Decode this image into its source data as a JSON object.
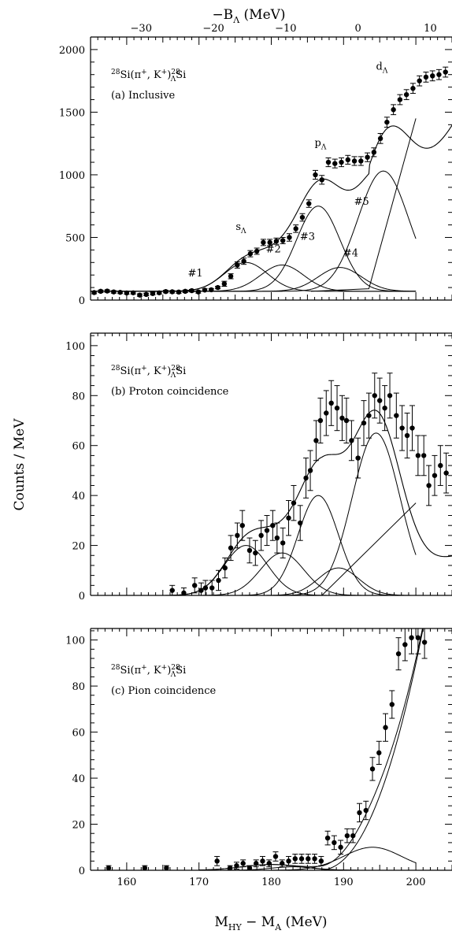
{
  "figure": {
    "top_axis_label": "−B",
    "top_axis_label_sub": "Λ",
    "top_axis_label_unit": " (MeV)",
    "y_axis_label": "Counts / MeV",
    "x_axis_label_main": "M",
    "x_axis_label_sub1": "HY",
    "x_axis_label_mid": " − M",
    "x_axis_label_sub2": "A",
    "x_axis_label_unit": " (MeV)"
  },
  "chart_data": [
    {
      "type": "scatter",
      "panel": "a",
      "reaction": {
        "pre": "28",
        "target": "Si(π",
        "sup1": "+",
        "mid": ", K",
        "sup2": "+",
        "close": ")",
        "pre2": "28",
        "sub": "Λ",
        "product": "Si"
      },
      "subtitle": "(a) Inclusive",
      "xlim": [
        155,
        205
      ],
      "ylim": [
        0,
        2100
      ],
      "yticks": [
        0,
        500,
        1000,
        1500,
        2000
      ],
      "xticks_top": [
        -30,
        -20,
        -10,
        0,
        10
      ],
      "top_axis_offset": 192,
      "xticks_bottom": [],
      "annotations": [
        {
          "text": "#1",
          "x": 169.5,
          "y": 190
        },
        {
          "text": "s",
          "sub": "Λ",
          "x": 175.8,
          "y": 560
        },
        {
          "text": "#2",
          "x": 180.3,
          "y": 380
        },
        {
          "text": "#3",
          "x": 185.0,
          "y": 480
        },
        {
          "text": "#4",
          "x": 191.0,
          "y": 350
        },
        {
          "text": "p",
          "sub": "Λ",
          "x": 186.8,
          "y": 1230
        },
        {
          "text": "#5",
          "x": 192.5,
          "y": 760
        },
        {
          "text": "d",
          "sub": "Λ",
          "x": 195.3,
          "y": 1840
        }
      ],
      "series": [
        {
          "x": [
            155.5,
            156.4,
            157.3,
            158.2,
            159.1,
            160,
            160.9,
            161.8,
            162.7,
            163.6,
            164.5,
            165.4,
            166.3,
            167.2,
            168.1,
            169,
            169.9,
            170.8,
            171.7,
            172.6,
            173.5,
            174.4,
            175.3,
            176.2,
            177.1,
            178,
            178.9,
            179.8,
            180.7,
            181.6,
            182.5,
            183.4,
            184.3,
            185.2,
            186.1,
            187,
            187.9,
            188.8,
            189.7,
            190.6,
            191.5,
            192.4,
            193.3,
            194.2,
            195.1,
            196,
            196.9,
            197.8,
            198.7,
            199.6,
            200.5,
            201.4,
            202.3,
            203.2,
            204.1
          ],
          "y": [
            60,
            70,
            72,
            65,
            62,
            57,
            58,
            40,
            45,
            52,
            58,
            68,
            66,
            64,
            70,
            75,
            65,
            80,
            82,
            100,
            130,
            190,
            280,
            310,
            370,
            390,
            460,
            460,
            470,
            475,
            500,
            570,
            660,
            770,
            1000,
            960,
            1100,
            1090,
            1100,
            1120,
            1110,
            1110,
            1140,
            1180,
            1290,
            1420,
            1520,
            1600,
            1640,
            1690,
            1750,
            1780,
            1790,
            1800,
            1820
          ],
          "err": [
            10,
            10,
            10,
            10,
            10,
            10,
            10,
            10,
            10,
            10,
            10,
            10,
            10,
            10,
            10,
            10,
            10,
            10,
            10,
            10,
            20,
            20,
            25,
            25,
            25,
            25,
            25,
            25,
            25,
            25,
            30,
            30,
            30,
            30,
            35,
            35,
            35,
            35,
            35,
            35,
            35,
            35,
            35,
            35,
            40,
            40,
            40,
            40,
            40,
            40,
            40,
            40,
            40,
            40,
            40
          ]
        }
      ],
      "fit": {
        "baseline": 70,
        "total_end": 200
      },
      "components": [
        {
          "name": "#1",
          "center": 176.5,
          "sigma": 3.0,
          "amp": 230
        },
        {
          "name": "#2",
          "center": 181.5,
          "sigma": 3.0,
          "amp": 210
        },
        {
          "name": "#3",
          "center": 186.5,
          "sigma": 3.0,
          "amp": 680
        },
        {
          "name": "#4",
          "center": 189.5,
          "sigma": 3.0,
          "amp": 190
        },
        {
          "name": "#5",
          "center": 195.5,
          "sigma": 3.5,
          "amp": 960
        }
      ],
      "quasifree_line": {
        "x": [
          193.5,
          200
        ],
        "y": [
          100,
          1380
        ]
      }
    },
    {
      "type": "scatter",
      "panel": "b",
      "reaction": {
        "pre": "28",
        "target": "Si(π",
        "sup1": "+",
        "mid": ", K",
        "sup2": "+",
        "close": ")",
        "pre2": "28",
        "sub": "Λ",
        "product": "Si"
      },
      "subtitle": "(b) Proton coincidence",
      "xlim": [
        155,
        205
      ],
      "ylim": [
        0,
        105
      ],
      "yticks": [
        0,
        20,
        40,
        60,
        80,
        100
      ],
      "xticks_bottom": [],
      "series": [
        {
          "x": [
            166.3,
            167.9,
            169.4,
            170.3,
            170.9,
            171.8,
            172.7,
            173.6,
            174.4,
            175.3,
            176.0,
            177.0,
            177.8,
            178.6,
            179.4,
            180.2,
            180.8,
            181.6,
            182.4,
            183.1,
            184.0,
            184.8,
            185.4,
            186.2,
            186.8,
            187.6,
            188.3,
            189.1,
            189.8,
            190.4,
            191.1,
            192.0,
            192.8,
            193.5,
            194.3,
            195.0,
            195.7,
            196.4,
            197.3,
            198.1,
            198.8,
            199.5,
            200.3,
            201.1,
            201.8,
            202.6,
            203.4,
            204.2
          ],
          "y": [
            2,
            1,
            4,
            2,
            3,
            3,
            6,
            11,
            19,
            24,
            28,
            18,
            17,
            24,
            26,
            28,
            23,
            21,
            31,
            37,
            29,
            47,
            50,
            62,
            70,
            73,
            77,
            75,
            71,
            70,
            62,
            55,
            69,
            72,
            80,
            78,
            75,
            80,
            72,
            67,
            64,
            67,
            56,
            56,
            44,
            48,
            52,
            49
          ],
          "err": [
            2,
            2,
            3,
            3,
            3,
            3,
            4,
            4,
            5,
            5,
            6,
            5,
            5,
            6,
            6,
            6,
            6,
            6,
            7,
            7,
            7,
            8,
            8,
            8,
            9,
            9,
            9,
            9,
            9,
            9,
            8,
            8,
            9,
            9,
            9,
            9,
            9,
            9,
            9,
            9,
            9,
            9,
            8,
            8,
            8,
            8,
            8,
            8
          ]
        }
      ],
      "components": [
        {
          "name": "#1",
          "center": 176.5,
          "sigma": 3.0,
          "amp": 20
        },
        {
          "name": "#2",
          "center": 181.5,
          "sigma": 3.0,
          "amp": 17
        },
        {
          "name": "#3",
          "center": 186.5,
          "sigma": 2.8,
          "amp": 40
        },
        {
          "name": "#4",
          "center": 189.3,
          "sigma": 2.8,
          "amp": 11
        },
        {
          "name": "#5",
          "center": 194.5,
          "sigma": 3.3,
          "amp": 65
        }
      ],
      "total_end": 200,
      "quasifree_line": {
        "x": [
          187,
          200
        ],
        "y": [
          0,
          37
        ]
      }
    },
    {
      "type": "scatter",
      "panel": "c",
      "reaction": {
        "pre": "28",
        "target": "Si(π",
        "sup1": "+",
        "mid": ", K",
        "sup2": "+",
        "close": ")",
        "pre2": "28",
        "sub": "Λ",
        "product": "Si"
      },
      "subtitle": "(c) Pion coincidence",
      "xlim": [
        155,
        205
      ],
      "ylim": [
        0,
        105
      ],
      "yticks": [
        0,
        20,
        40,
        60,
        80,
        100
      ],
      "xticks_bottom": [
        160,
        170,
        180,
        190,
        200
      ],
      "series": [
        {
          "x": [
            157.5,
            162.5,
            165.5,
            172.5,
            174.3,
            175.2,
            176.1,
            177.0,
            177.9,
            178.8,
            179.7,
            180.6,
            181.5,
            182.4,
            183.3,
            184.2,
            185.1,
            186.0,
            186.9,
            187.8,
            188.7,
            189.6,
            190.5,
            191.3,
            192.2,
            193.1,
            194.0,
            194.9,
            195.8,
            196.7,
            197.6,
            198.5,
            199.4,
            200.3,
            201.2
          ],
          "y": [
            1,
            1,
            1,
            4,
            1,
            2,
            3,
            1,
            3,
            4,
            3,
            6,
            3,
            4,
            5,
            5,
            5,
            5,
            4,
            14,
            12,
            10,
            15,
            15,
            25,
            26,
            44,
            51,
            62,
            72,
            94,
            98,
            101,
            101,
            99
          ],
          "err": [
            1,
            1,
            1,
            2,
            1,
            1.5,
            1.5,
            1,
            1.5,
            2,
            1.5,
            2,
            1.5,
            2,
            2,
            2,
            2,
            2,
            2,
            3,
            3,
            3,
            3,
            3,
            4,
            4,
            5,
            5,
            6,
            6,
            7,
            7,
            7,
            7,
            7
          ]
        }
      ],
      "components": [
        {
          "name": "bump",
          "center": 194.0,
          "sigma": 4.0,
          "amp": 10
        }
      ],
      "rise": {
        "x0": 186.5,
        "x1": 201,
        "y1": 105
      }
    }
  ]
}
